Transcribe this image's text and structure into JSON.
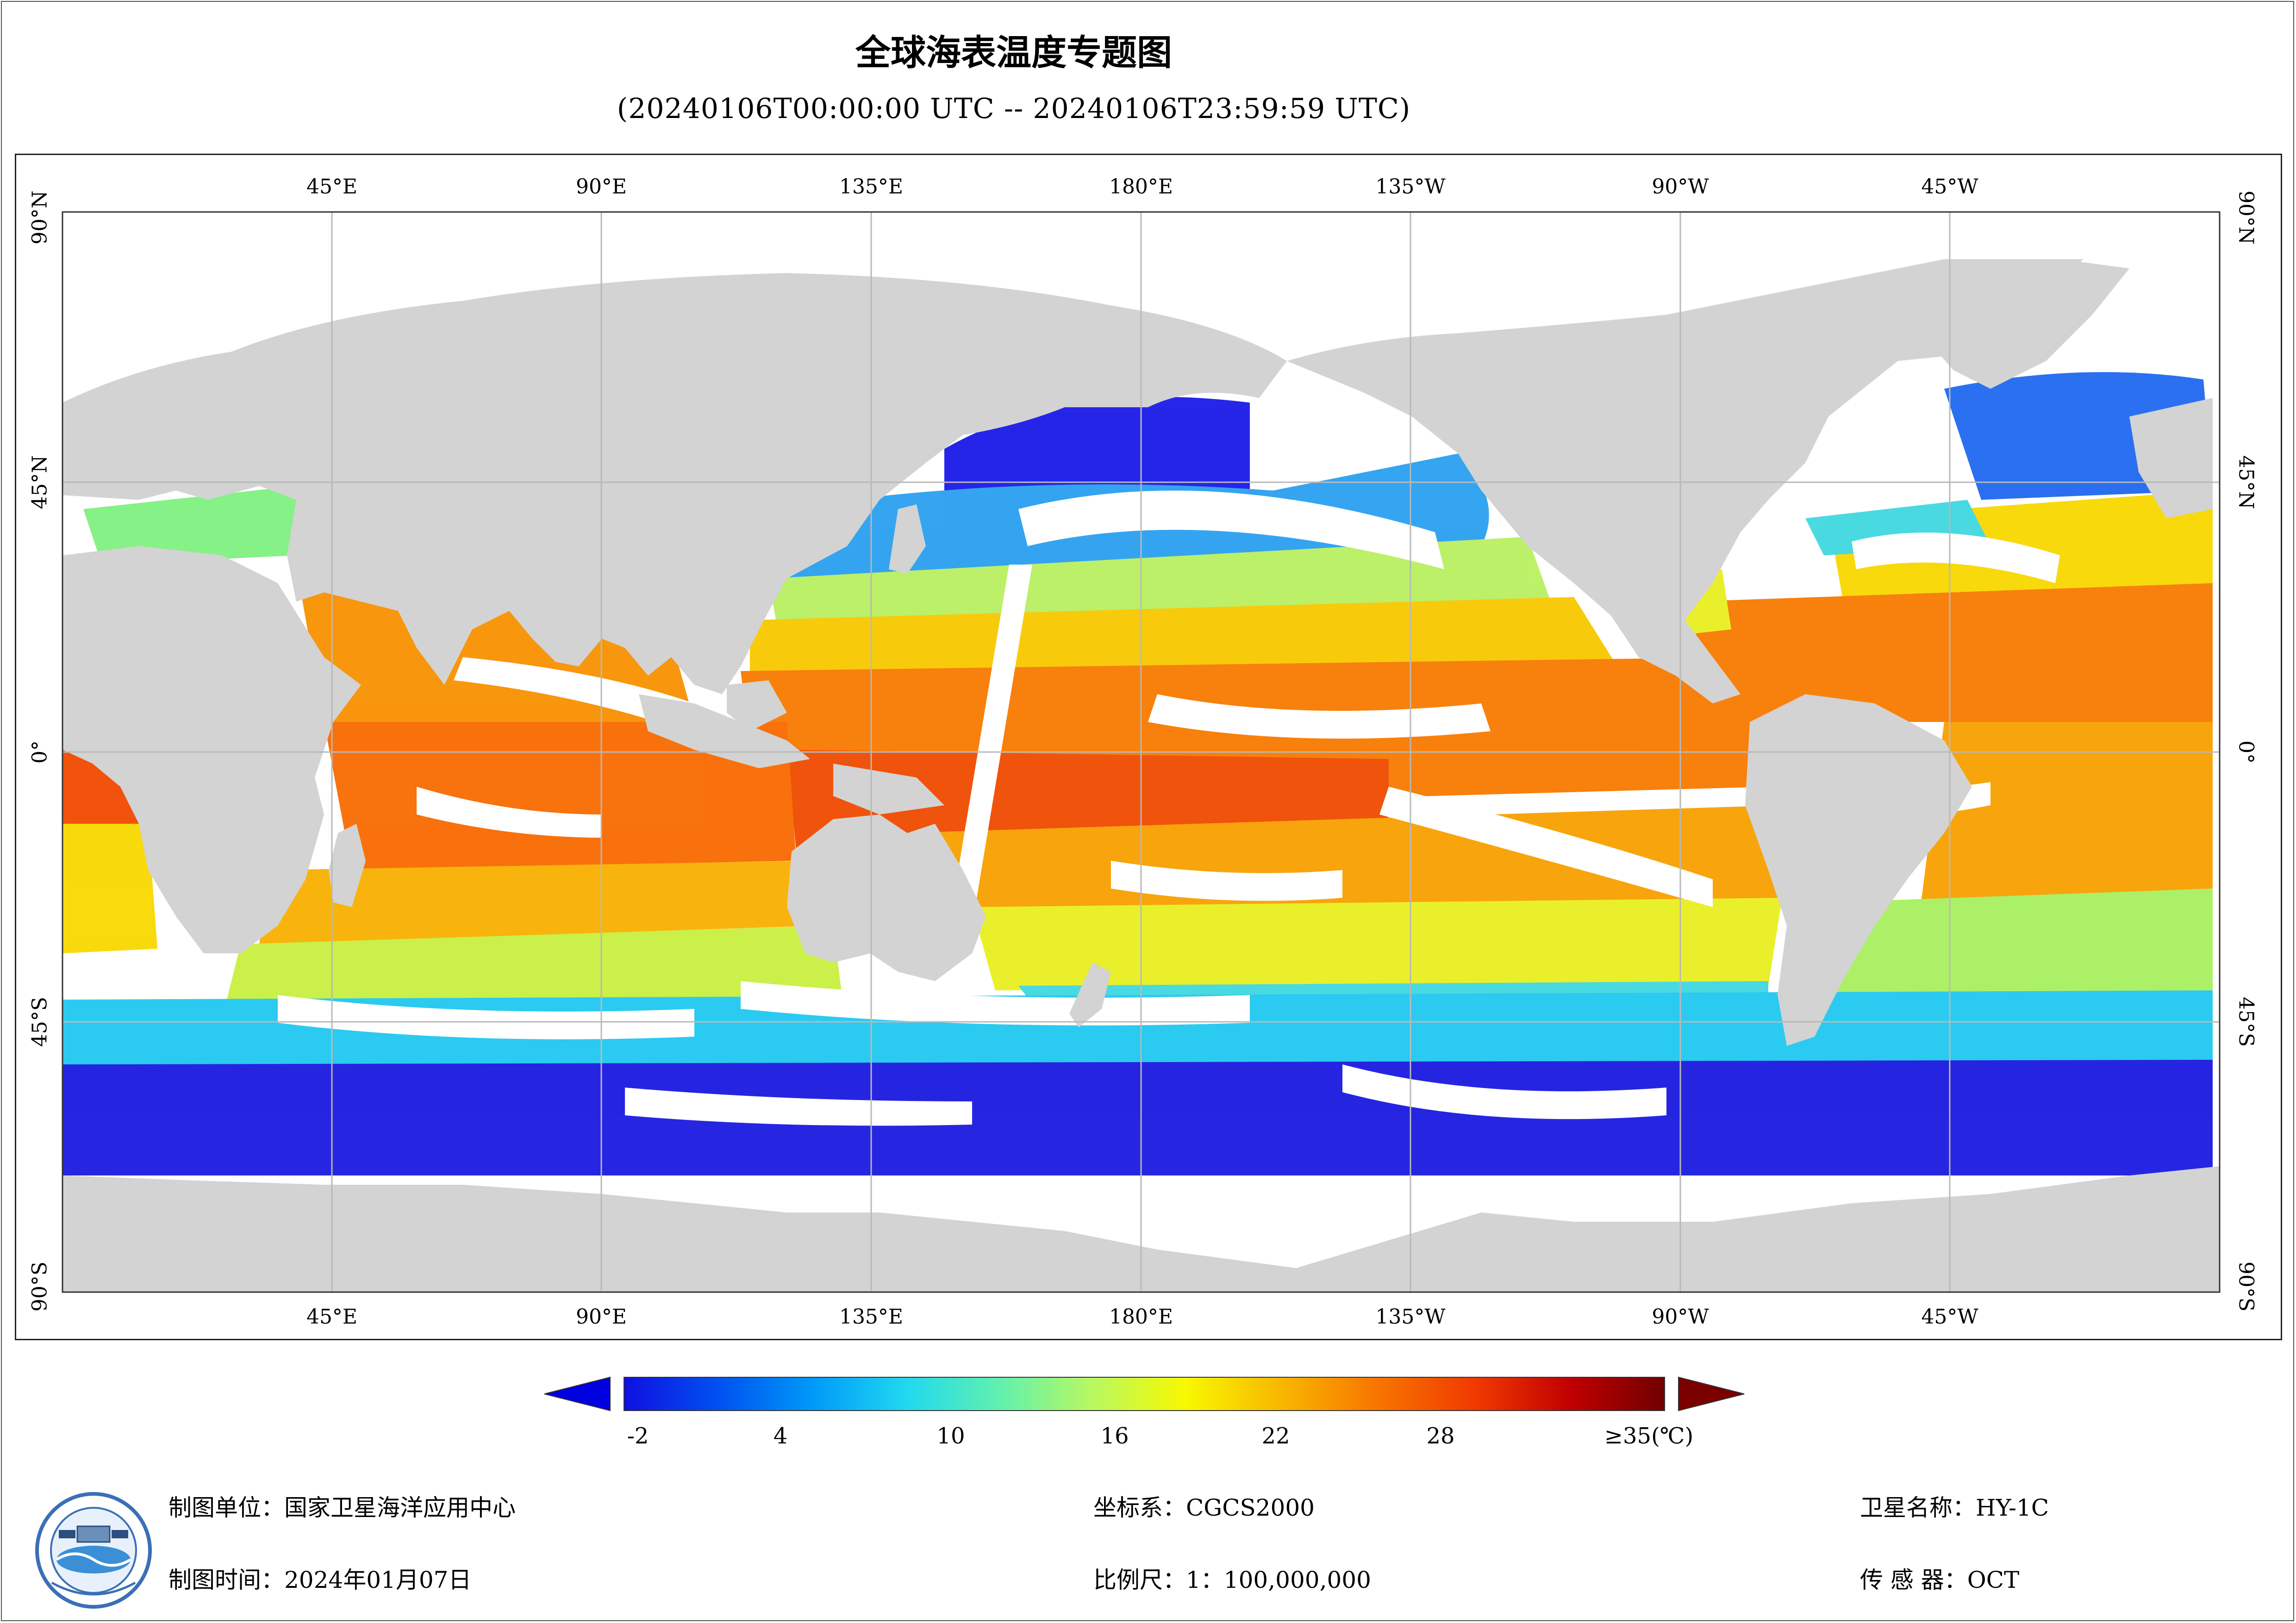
{
  "title": "全球海表温度专题图",
  "subtitle": "(20240106T00:00:00 UTC -- 20240106T23:59:59 UTC)",
  "map": {
    "top_lon_labels": [
      "45°E",
      "90°E",
      "135°E",
      "180°E",
      "135°W",
      "90°W",
      "45°W"
    ],
    "bottom_lon_labels": [
      "45°E",
      "90°E",
      "135°E",
      "180°E",
      "135°W",
      "90°W",
      "45°W"
    ],
    "left_lat_labels": [
      "90°N",
      "45°N",
      "0°",
      "45°S",
      "90°S"
    ],
    "right_lat_labels": [
      "90°N",
      "45°N",
      "0°",
      "45°S",
      "90°S"
    ],
    "colors": {
      "land": "#d3d3d3",
      "missing": "#ffffff",
      "grid": "#b9b9b9"
    }
  },
  "legend": {
    "tick_labels": [
      "-2",
      "4",
      "10",
      "16",
      "22",
      "28",
      "≥35(℃)"
    ],
    "colormap": [
      "#1010e0",
      "#0050f0",
      "#0098f8",
      "#20d8f0",
      "#60f0b0",
      "#b8f860",
      "#f8f800",
      "#f8b800",
      "#f87800",
      "#f03800",
      "#c00000",
      "#700000"
    ],
    "under_color": "#0000e0",
    "over_color": "#7a0000"
  },
  "footer": {
    "agency": "制图单位：国家卫星海洋应用中心",
    "date": "制图时间：2024年01月07日",
    "crs": "坐标系：CGCS2000",
    "scale": "比例尺：1：100,000,000",
    "satellite": "卫星名称：HY-1C",
    "sensor": "传 感 器：OCT"
  }
}
